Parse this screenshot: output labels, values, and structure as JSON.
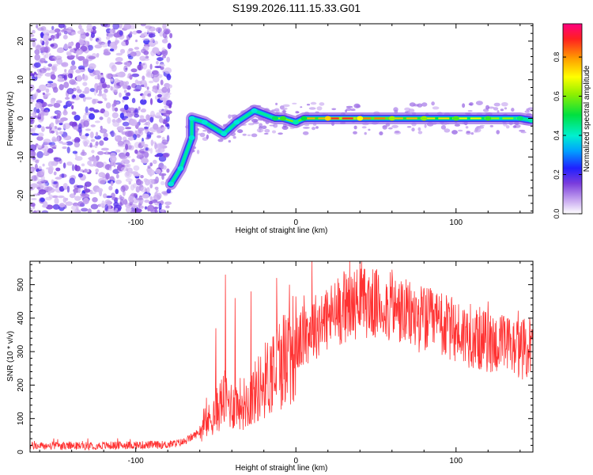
{
  "title": "S199.2026.111.15.33.G01",
  "colors": {
    "signal": "#ff3333",
    "axes": "#000000",
    "background": "#ffffff"
  },
  "chart_data": [
    {
      "type": "heatmap",
      "title": "",
      "xlabel": "Height of straight line (km)",
      "ylabel": "Frequency (Hz)",
      "xlim": [
        -166,
        148
      ],
      "ylim": [
        -24.5,
        24.5
      ],
      "xticks": [
        -100,
        0,
        100
      ],
      "yticks": [
        -20,
        -10,
        0,
        10,
        20
      ],
      "xtick_labels": [
        "-100",
        "0",
        "100"
      ],
      "ytick_labels": [
        "-20",
        "-10",
        "0",
        "10",
        "20"
      ],
      "colorbar": {
        "label": "Normalized spectral amplitude",
        "range": [
          0,
          0.97
        ],
        "ticks": [
          0.0,
          0.2,
          0.4,
          0.6,
          0.8
        ],
        "tick_labels": [
          "0.0",
          "0.2",
          "0.4",
          "0.6",
          "0.8"
        ],
        "colormap": "rainbow"
      },
      "ridge": [
        {
          "x": -78,
          "y": -17,
          "v": 0.35
        },
        {
          "x": -72,
          "y": -13,
          "v": 0.3
        },
        {
          "x": -65,
          "y": -5,
          "v": 0.28
        },
        {
          "x": -65,
          "y": 0,
          "v": 0.32
        },
        {
          "x": -57,
          "y": -1,
          "v": 0.3
        },
        {
          "x": -45,
          "y": -4,
          "v": 0.32
        },
        {
          "x": -37,
          "y": -1,
          "v": 0.3
        },
        {
          "x": -26,
          "y": 2,
          "v": 0.4
        },
        {
          "x": -13,
          "y": 0,
          "v": 0.62
        },
        {
          "x": -8,
          "y": 0,
          "v": 0.7
        },
        {
          "x": 0,
          "y": -1,
          "v": 0.55
        },
        {
          "x": 5,
          "y": 0,
          "v": 0.65
        },
        {
          "x": 20,
          "y": 0,
          "v": 0.95
        },
        {
          "x": 40,
          "y": 0,
          "v": 0.9
        },
        {
          "x": 60,
          "y": 0,
          "v": 0.8
        },
        {
          "x": 80,
          "y": 0,
          "v": 0.78
        },
        {
          "x": 100,
          "y": 0,
          "v": 0.72
        },
        {
          "x": 120,
          "y": 0,
          "v": 0.7
        },
        {
          "x": 140,
          "y": 0,
          "v": 0.6
        },
        {
          "x": 147,
          "y": -0.5,
          "v": 0.55
        }
      ]
    },
    {
      "type": "line",
      "title": "",
      "xlabel": "Height of straight line (km)",
      "ylabel": "SNR (10 * v/v)",
      "xlim": [
        -166,
        148
      ],
      "ylim": [
        0,
        570
      ],
      "xticks": [
        -100,
        0,
        100
      ],
      "yticks": [
        0,
        100,
        200,
        300,
        400,
        500
      ],
      "xtick_labels": [
        "-100",
        "0",
        "100"
      ],
      "ytick_labels": [
        "0",
        "100",
        "200",
        "300",
        "400",
        "500"
      ],
      "series": [
        {
          "name": "SNR",
          "envelope": {
            "x": [
              -166,
              -140,
              -110,
              -80,
              -70,
              -60,
              -50,
              -45,
              -40,
              -30,
              -20,
              -10,
              0,
              10,
              20,
              30,
              40,
              50,
              60,
              70,
              80,
              90,
              100,
              110,
              120,
              130,
              140,
              148
            ],
            "y": [
              18,
              18,
              20,
              22,
              30,
              60,
              120,
              160,
              140,
              150,
              210,
              270,
              320,
              370,
              400,
              430,
              450,
              440,
              430,
              410,
              395,
              380,
              360,
              345,
              330,
              320,
              310,
              305
            ]
          },
          "spikes": [
            {
              "x": -50,
              "y": 370
            },
            {
              "x": -44,
              "y": 530
            },
            {
              "x": -38,
              "y": 460
            },
            {
              "x": -28,
              "y": 480
            },
            {
              "x": -12,
              "y": 520
            },
            {
              "x": -4,
              "y": 500
            },
            {
              "x": 10,
              "y": 570
            },
            {
              "x": 30,
              "y": 540
            },
            {
              "x": 40,
              "y": 565
            },
            {
              "x": 60,
              "y": 545
            },
            {
              "x": 80,
              "y": 490
            },
            {
              "x": 120,
              "y": 450
            },
            {
              "x": 146,
              "y": 400
            }
          ]
        }
      ]
    }
  ]
}
